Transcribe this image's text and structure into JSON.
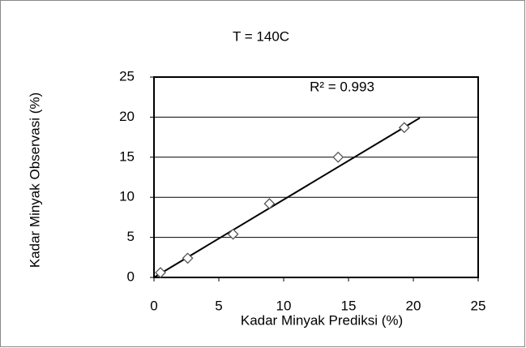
{
  "chart_data": {
    "type": "scatter",
    "title": "T = 140C",
    "annotation": "R² = 0.993",
    "xlabel": "Kadar Minyak Prediksi (%)",
    "ylabel": "Kadar Minyak Observasi (%)",
    "x": [
      0.5,
      2.6,
      6.1,
      8.9,
      14.2,
      19.3
    ],
    "values": [
      0.6,
      2.4,
      5.4,
      9.2,
      15.0,
      18.7
    ],
    "color": "#555555",
    "trendline": {
      "x": [
        0,
        20.5
      ],
      "y": [
        0,
        19.9
      ],
      "color": "#000000"
    },
    "xlim": [
      0,
      25
    ],
    "xticks": [
      0,
      5,
      10,
      15,
      20,
      25
    ],
    "ylim": [
      0,
      25
    ],
    "yticks": [
      0,
      5,
      10,
      15,
      20,
      25
    ],
    "grid": true
  }
}
